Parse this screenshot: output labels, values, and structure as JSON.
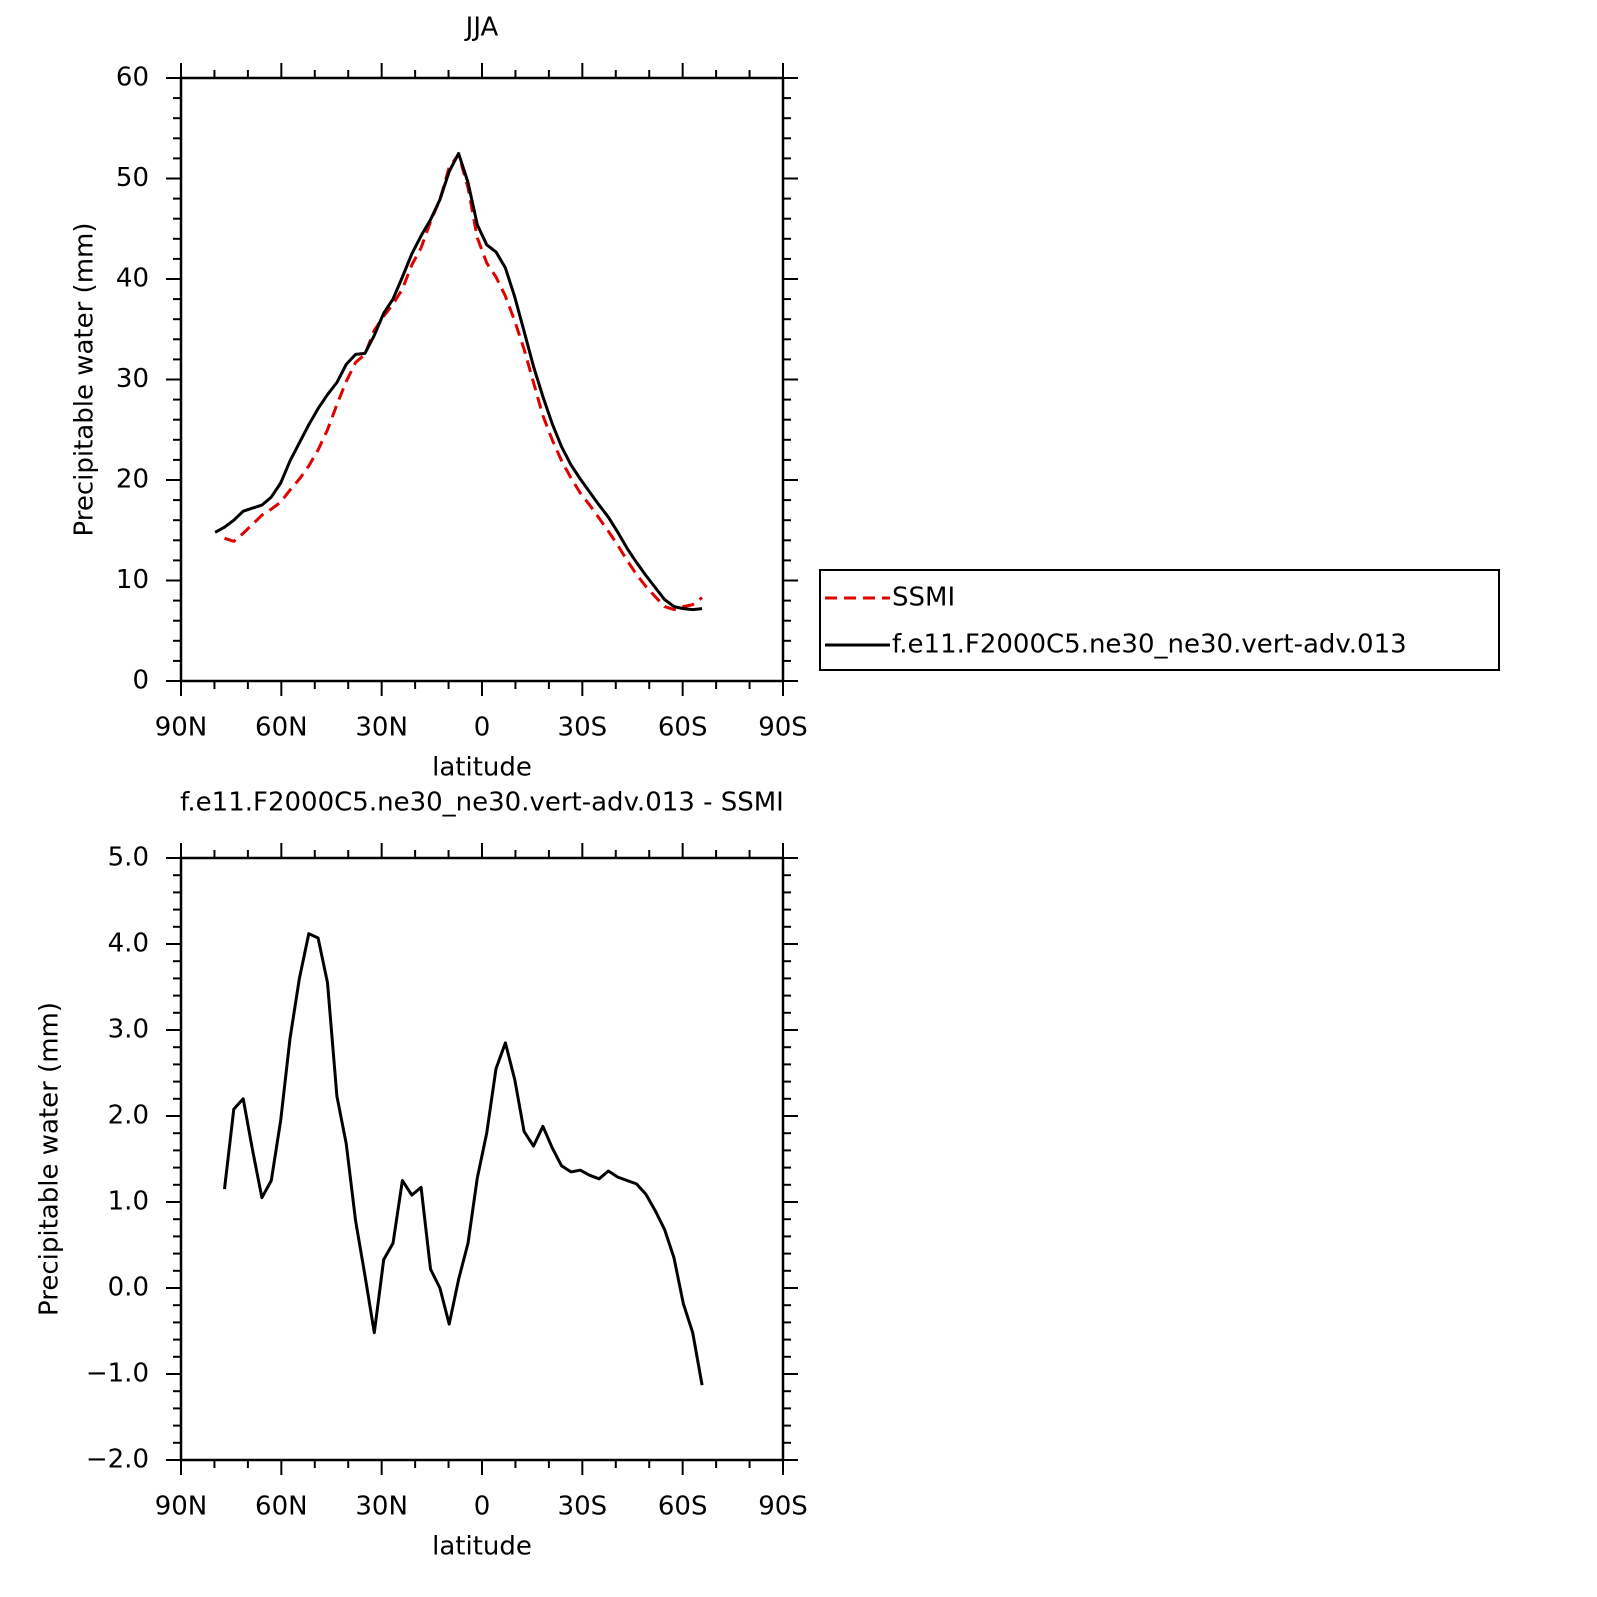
{
  "chart_data": [
    {
      "type": "line",
      "title": "JJA",
      "xlabel": "latitude",
      "ylabel": "Precipitable water (mm)",
      "x": [
        79.8,
        77.0,
        74.2,
        71.4,
        68.6,
        65.8,
        63.0,
        60.2,
        57.4,
        54.6,
        51.8,
        49.0,
        46.2,
        43.4,
        40.6,
        37.8,
        35.0,
        32.2,
        29.4,
        26.6,
        23.8,
        21.0,
        18.2,
        15.4,
        12.6,
        9.8,
        7.0,
        4.2,
        1.4,
        -1.4,
        -4.2,
        -7.0,
        -9.8,
        -12.6,
        -15.4,
        -18.2,
        -21.0,
        -23.8,
        -26.6,
        -29.4,
        -32.2,
        -35.0,
        -37.8,
        -40.6,
        -43.4,
        -46.2,
        -49.0,
        -51.8,
        -54.6,
        -57.4,
        -60.2,
        -63.0,
        -65.8
      ],
      "series": [
        {
          "name": "SSMI",
          "color": "#e00000",
          "dashed": true,
          "values": [
            null,
            14.2,
            13.9,
            14.7,
            15.6,
            16.5,
            17.1,
            17.8,
            19.0,
            20.1,
            21.4,
            23.0,
            25.0,
            27.5,
            29.8,
            31.7,
            32.5,
            34.9,
            36.3,
            37.5,
            39.0,
            41.4,
            43.1,
            45.7,
            47.9,
            51.1,
            52.4,
            49.1,
            44.1,
            41.6,
            40.2,
            38.3,
            35.8,
            33.0,
            29.7,
            26.4,
            24.0,
            21.9,
            20.2,
            18.7,
            17.5,
            16.2,
            14.9,
            13.5,
            12.0,
            10.6,
            9.4,
            8.4,
            7.4,
            7.1,
            7.4,
            7.6,
            8.3
          ]
        },
        {
          "name": "f.e11.F2000C5.ne30_ne30.vert-adv.013",
          "color": "#000000",
          "dashed": false,
          "values": [
            14.8,
            15.3,
            16.0,
            16.9,
            17.2,
            17.5,
            18.3,
            19.7,
            21.9,
            23.7,
            25.5,
            27.1,
            28.5,
            29.7,
            31.5,
            32.5,
            32.6,
            34.4,
            36.6,
            38.0,
            40.2,
            42.5,
            44.3,
            45.9,
            47.9,
            50.7,
            52.5,
            49.6,
            45.4,
            43.4,
            42.7,
            41.1,
            38.2,
            34.8,
            31.3,
            28.3,
            25.6,
            23.3,
            21.5,
            20.1,
            18.8,
            17.5,
            16.3,
            14.8,
            13.2,
            11.8,
            10.5,
            9.3,
            8.1,
            7.4,
            7.2,
            7.1,
            7.2
          ]
        }
      ],
      "xlim": [
        90,
        -90
      ],
      "xticks": [
        {
          "value": 90,
          "label": "90N"
        },
        {
          "value": 60,
          "label": "60N"
        },
        {
          "value": 30,
          "label": "30N"
        },
        0,
        {
          "value": -30,
          "label": "30S"
        },
        {
          "value": -60,
          "label": "60S"
        },
        {
          "value": -90,
          "label": "90S"
        }
      ],
      "ylim": [
        0,
        60
      ],
      "yticks": [
        0,
        10,
        20,
        30,
        40,
        50,
        60
      ],
      "legend": "right"
    },
    {
      "type": "line",
      "title": "f.e11.F2000C5.ne30_ne30.vert-adv.013 - SSMI",
      "xlabel": "latitude",
      "ylabel": "Precipitable water (mm)",
      "x": [
        77.0,
        74.2,
        71.4,
        68.6,
        65.8,
        63.0,
        60.2,
        57.4,
        54.6,
        51.8,
        49.0,
        46.2,
        43.4,
        40.6,
        37.8,
        35.0,
        32.2,
        29.4,
        26.6,
        23.8,
        21.0,
        18.2,
        15.4,
        12.6,
        9.8,
        7.0,
        4.2,
        1.4,
        -1.4,
        -4.2,
        -7.0,
        -9.8,
        -12.6,
        -15.4,
        -18.2,
        -21.0,
        -23.8,
        -26.6,
        -29.4,
        -32.2,
        -35.0,
        -37.8,
        -40.6,
        -43.4,
        -46.2,
        -49.0,
        -51.8,
        -54.6,
        -57.4,
        -60.2,
        -63.0,
        -65.8
      ],
      "color": "#000000",
      "values": [
        1.15,
        2.08,
        2.2,
        1.6,
        1.05,
        1.25,
        1.95,
        2.9,
        3.6,
        4.12,
        4.07,
        3.55,
        2.23,
        1.68,
        0.78,
        0.15,
        -0.52,
        0.33,
        0.52,
        1.25,
        1.08,
        1.17,
        0.22,
        0.0,
        -0.42,
        0.1,
        0.52,
        1.28,
        1.8,
        2.55,
        2.85,
        2.42,
        1.82,
        1.65,
        1.88,
        1.63,
        1.42,
        1.35,
        1.37,
        1.31,
        1.27,
        1.36,
        1.29,
        1.25,
        1.21,
        1.09,
        0.9,
        0.68,
        0.35,
        -0.18,
        -0.52,
        -1.13
      ],
      "xlim": [
        90,
        -90
      ],
      "xticks": [
        {
          "value": 90,
          "label": "90N"
        },
        {
          "value": 60,
          "label": "60N"
        },
        {
          "value": 30,
          "label": "30N"
        },
        0,
        {
          "value": -30,
          "label": "30S"
        },
        {
          "value": -60,
          "label": "60S"
        },
        {
          "value": -90,
          "label": "90S"
        }
      ],
      "ylim": [
        -2,
        5
      ],
      "yticks": [
        {
          "value": -2,
          "label": "−2.0"
        },
        {
          "value": -1,
          "label": "−1.0"
        },
        {
          "value": 0,
          "label": "0.0"
        },
        {
          "value": 1,
          "label": "1.0"
        },
        {
          "value": 2,
          "label": "2.0"
        },
        {
          "value": 3,
          "label": "3.0"
        },
        {
          "value": 4,
          "label": "4.0"
        },
        {
          "value": 5,
          "label": "5.0"
        }
      ]
    }
  ]
}
